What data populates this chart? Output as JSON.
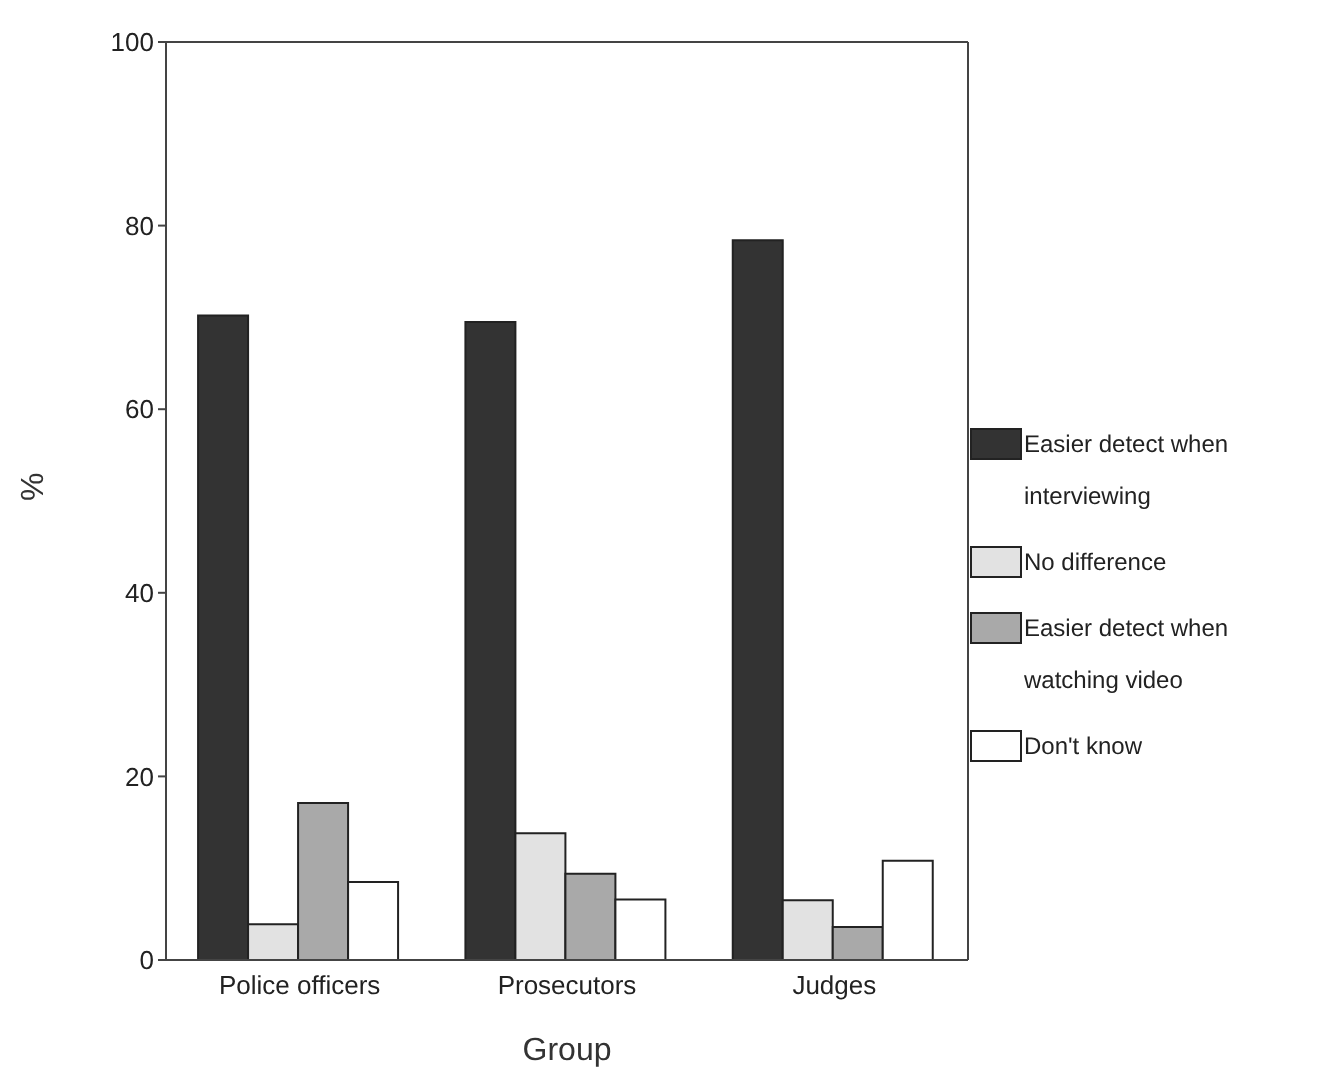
{
  "chart_data": {
    "type": "bar",
    "xlabel": "Group",
    "ylabel": "%",
    "categories": [
      "Police officers",
      "Prosecutors",
      "Judges"
    ],
    "series": [
      {
        "name": "Easier detect when interviewing",
        "color": "#333333",
        "values": [
          70.2,
          69.5,
          78.4
        ]
      },
      {
        "name": "No difference",
        "color": "#e2e2e2",
        "values": [
          3.9,
          13.8,
          6.5
        ]
      },
      {
        "name": "Easier detect when watching video",
        "color": "#a9a9a9",
        "values": [
          17.1,
          9.4,
          3.6
        ]
      },
      {
        "name": "Don't know",
        "color": "#ffffff",
        "values": [
          8.5,
          6.6,
          10.8
        ]
      }
    ],
    "ylim": [
      0,
      100
    ],
    "yticks": [
      0,
      20,
      40,
      60,
      80,
      100
    ],
    "grid": false,
    "legend": "right"
  }
}
